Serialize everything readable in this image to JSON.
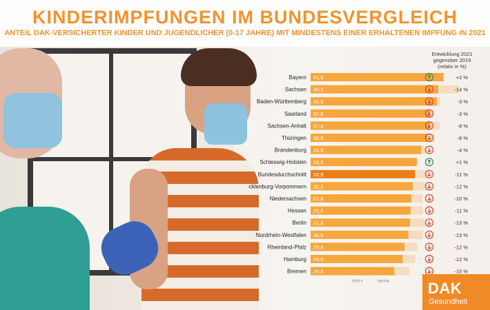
{
  "header": {
    "title": "KINDERIMPFUNGEN IM BUNDESVERGLEICH",
    "subtitle": "ANTEIL DAK-VERSICHERTER KINDER UND JUGENDLICHER (0-17 JAHRE) MIT MINDESTENS EINER ERHALTENEN IMPFUNG IN 2021"
  },
  "trend_header": {
    "line1": "Entwicklung 2021",
    "line2": "gegenüber 2019",
    "line3": "(relativ in %)"
  },
  "logo": {
    "name": "DAK",
    "sub": "Gesundheit"
  },
  "colors": {
    "orange": "#f5a73c",
    "orange_highlight": "#ea7f16",
    "bar_2019": "#f6dcc0",
    "trend_up": "#2f8a55",
    "trend_down": "#d9442f"
  },
  "chart_data": {
    "type": "bar",
    "orientation": "horizontal",
    "xlim": [
      0,
      50
    ],
    "highlight_category": "Bundesdurchschnitt",
    "series": [
      {
        "name": "2021",
        "values": [
          41.9,
          40.2,
          39.8,
          37.6,
          37.4,
          36.8,
          34.9,
          33.5,
          32.9,
          32.2,
          31.8,
          31.5,
          31.3,
          30.8,
          29.6,
          29.0,
          26.4
        ]
      },
      {
        "name": "2019",
        "values": [
          41.1,
          46.7,
          40.7,
          38.8,
          40.7,
          39.1,
          36.4,
          33.2,
          37.0,
          36.6,
          35.3,
          35.4,
          36.0,
          35.4,
          33.6,
          33.0,
          31.1
        ]
      }
    ],
    "categories": [
      "Bayern",
      "Sachsen",
      "Baden-Württemberg",
      "Saarland",
      "Sachsen-Anhalt",
      "Thüringen",
      "Brandenburg",
      "Schleswig-Holstein",
      "Bundesdurchschnitt",
      "Mecklenburg-Vorpommern",
      "Niedersachsen",
      "Hessen",
      "Berlin",
      "Nordrhein-Westfalen",
      "Rheinland-Pfalz",
      "Hamburg",
      "Bremen"
    ],
    "value_labels": [
      "41,9",
      "40,2",
      "39,8",
      "37,6",
      "37,4",
      "36,8",
      "34,9",
      "33,5",
      "32,9",
      "32,2",
      "31,8",
      "31,5",
      "31,3",
      "30,8",
      "29,6",
      "29,0",
      "26,4"
    ],
    "trend_labels": [
      "+2 %",
      "-14 %",
      "-3 %",
      "-3 %",
      "-8 %",
      "-6 %",
      "-4 %",
      "+1 %",
      "-11 %",
      "-12 %",
      "-10 %",
      "-11 %",
      "-13 %",
      "-13 %",
      "-12 %",
      "-12 %",
      "-15 %"
    ],
    "trend_direction": [
      "up",
      "down",
      "down",
      "down",
      "down",
      "down",
      "down",
      "up",
      "down",
      "down",
      "down",
      "down",
      "down",
      "down",
      "down",
      "down",
      "down"
    ],
    "legend": [
      "2021",
      "2019"
    ]
  }
}
